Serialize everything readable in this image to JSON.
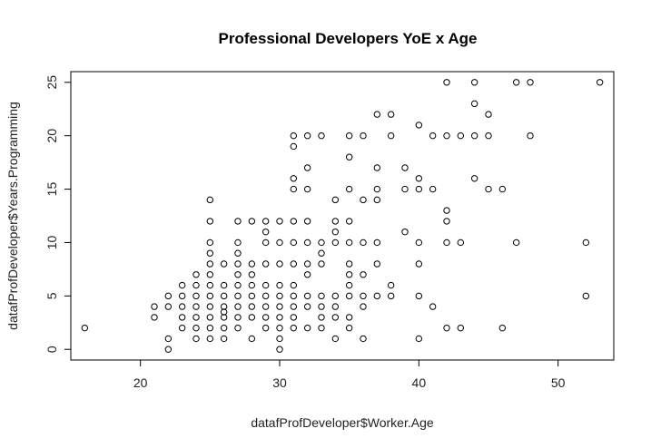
{
  "chart_data": {
    "type": "scatter",
    "title": "Professional Developers YoE x Age",
    "xlabel": "datafProfDeveloper$Worker.Age",
    "ylabel": "datafProfDeveloper$Years.Programming",
    "xlim": [
      15,
      54
    ],
    "ylim": [
      -1,
      26
    ],
    "x_ticks": [
      20,
      30,
      40,
      50
    ],
    "y_ticks": [
      0,
      5,
      10,
      15,
      20,
      25
    ],
    "grid": false,
    "legend": "none",
    "points": [
      [
        16,
        2
      ],
      [
        21,
        3
      ],
      [
        21,
        4
      ],
      [
        22,
        0
      ],
      [
        22,
        1
      ],
      [
        22,
        4
      ],
      [
        22,
        5
      ],
      [
        23,
        2
      ],
      [
        23,
        3
      ],
      [
        23,
        4
      ],
      [
        23,
        5
      ],
      [
        23,
        6
      ],
      [
        24,
        1
      ],
      [
        24,
        2
      ],
      [
        24,
        3
      ],
      [
        24,
        4
      ],
      [
        24,
        5
      ],
      [
        24,
        6
      ],
      [
        24,
        7
      ],
      [
        25,
        1
      ],
      [
        25,
        2
      ],
      [
        25,
        3
      ],
      [
        25,
        4
      ],
      [
        25,
        5
      ],
      [
        25,
        6
      ],
      [
        25,
        7
      ],
      [
        25,
        8
      ],
      [
        25,
        9
      ],
      [
        25,
        10
      ],
      [
        25,
        12
      ],
      [
        25,
        14
      ],
      [
        26,
        1
      ],
      [
        26,
        2
      ],
      [
        26,
        3
      ],
      [
        26,
        3.5
      ],
      [
        26,
        4
      ],
      [
        26,
        5
      ],
      [
        26,
        6
      ],
      [
        26,
        8
      ],
      [
        27,
        2
      ],
      [
        27,
        3
      ],
      [
        27,
        4
      ],
      [
        27,
        5
      ],
      [
        27,
        6
      ],
      [
        27,
        7
      ],
      [
        27,
        8
      ],
      [
        27,
        9
      ],
      [
        27,
        10
      ],
      [
        27,
        12
      ],
      [
        28,
        1
      ],
      [
        28,
        3
      ],
      [
        28,
        4
      ],
      [
        28,
        5
      ],
      [
        28,
        6
      ],
      [
        28,
        7
      ],
      [
        28,
        8
      ],
      [
        28,
        12
      ],
      [
        29,
        2
      ],
      [
        29,
        3
      ],
      [
        29,
        4
      ],
      [
        29,
        5
      ],
      [
        29,
        6
      ],
      [
        29,
        8
      ],
      [
        29,
        10
      ],
      [
        29,
        11
      ],
      [
        29,
        12
      ],
      [
        30,
        0
      ],
      [
        30,
        1
      ],
      [
        30,
        2
      ],
      [
        30,
        3
      ],
      [
        30,
        4
      ],
      [
        30,
        5
      ],
      [
        30,
        6
      ],
      [
        30,
        8
      ],
      [
        30,
        10
      ],
      [
        30,
        12
      ],
      [
        31,
        2
      ],
      [
        31,
        3
      ],
      [
        31,
        4
      ],
      [
        31,
        5
      ],
      [
        31,
        6
      ],
      [
        31,
        8
      ],
      [
        31,
        10
      ],
      [
        31,
        12
      ],
      [
        31,
        15
      ],
      [
        31,
        16
      ],
      [
        31,
        19
      ],
      [
        31,
        20
      ],
      [
        32,
        2
      ],
      [
        32,
        4
      ],
      [
        32,
        5
      ],
      [
        32,
        7
      ],
      [
        32,
        8
      ],
      [
        32,
        10
      ],
      [
        32,
        12
      ],
      [
        32,
        15
      ],
      [
        32,
        17
      ],
      [
        32,
        20
      ],
      [
        33,
        2
      ],
      [
        33,
        3
      ],
      [
        33,
        4
      ],
      [
        33,
        5
      ],
      [
        33,
        8
      ],
      [
        33,
        9
      ],
      [
        33,
        10
      ],
      [
        33,
        20
      ],
      [
        34,
        1
      ],
      [
        34,
        3
      ],
      [
        34,
        4
      ],
      [
        34,
        5
      ],
      [
        34,
        10
      ],
      [
        34,
        11
      ],
      [
        34,
        12
      ],
      [
        34,
        14
      ],
      [
        35,
        2
      ],
      [
        35,
        3
      ],
      [
        35,
        5
      ],
      [
        35,
        6
      ],
      [
        35,
        7
      ],
      [
        35,
        8
      ],
      [
        35,
        10
      ],
      [
        35,
        12
      ],
      [
        35,
        15
      ],
      [
        35,
        18
      ],
      [
        35,
        20
      ],
      [
        36,
        1
      ],
      [
        36,
        4
      ],
      [
        36,
        5
      ],
      [
        36,
        7
      ],
      [
        36,
        10
      ],
      [
        36,
        14
      ],
      [
        36,
        20
      ],
      [
        37,
        5
      ],
      [
        37,
        8
      ],
      [
        37,
        10
      ],
      [
        37,
        14
      ],
      [
        37,
        15
      ],
      [
        37,
        17
      ],
      [
        37,
        22
      ],
      [
        38,
        5
      ],
      [
        38,
        6
      ],
      [
        38,
        20
      ],
      [
        38,
        22
      ],
      [
        39,
        11
      ],
      [
        39,
        15
      ],
      [
        39,
        17
      ],
      [
        40,
        1
      ],
      [
        40,
        5
      ],
      [
        40,
        8
      ],
      [
        40,
        10
      ],
      [
        40,
        15
      ],
      [
        40,
        16
      ],
      [
        40,
        21
      ],
      [
        41,
        4
      ],
      [
        41,
        15
      ],
      [
        41,
        20
      ],
      [
        42,
        2
      ],
      [
        42,
        10
      ],
      [
        42,
        12
      ],
      [
        42,
        13
      ],
      [
        42,
        20
      ],
      [
        42,
        25
      ],
      [
        43,
        2
      ],
      [
        43,
        10
      ],
      [
        43,
        20
      ],
      [
        44,
        16
      ],
      [
        44,
        20
      ],
      [
        44,
        23
      ],
      [
        44,
        25
      ],
      [
        45,
        15
      ],
      [
        45,
        20
      ],
      [
        45,
        22
      ],
      [
        46,
        2
      ],
      [
        46,
        15
      ],
      [
        47,
        10
      ],
      [
        47,
        25
      ],
      [
        48,
        20
      ],
      [
        48,
        25
      ],
      [
        52,
        5
      ],
      [
        52,
        10
      ],
      [
        53,
        25
      ]
    ]
  }
}
